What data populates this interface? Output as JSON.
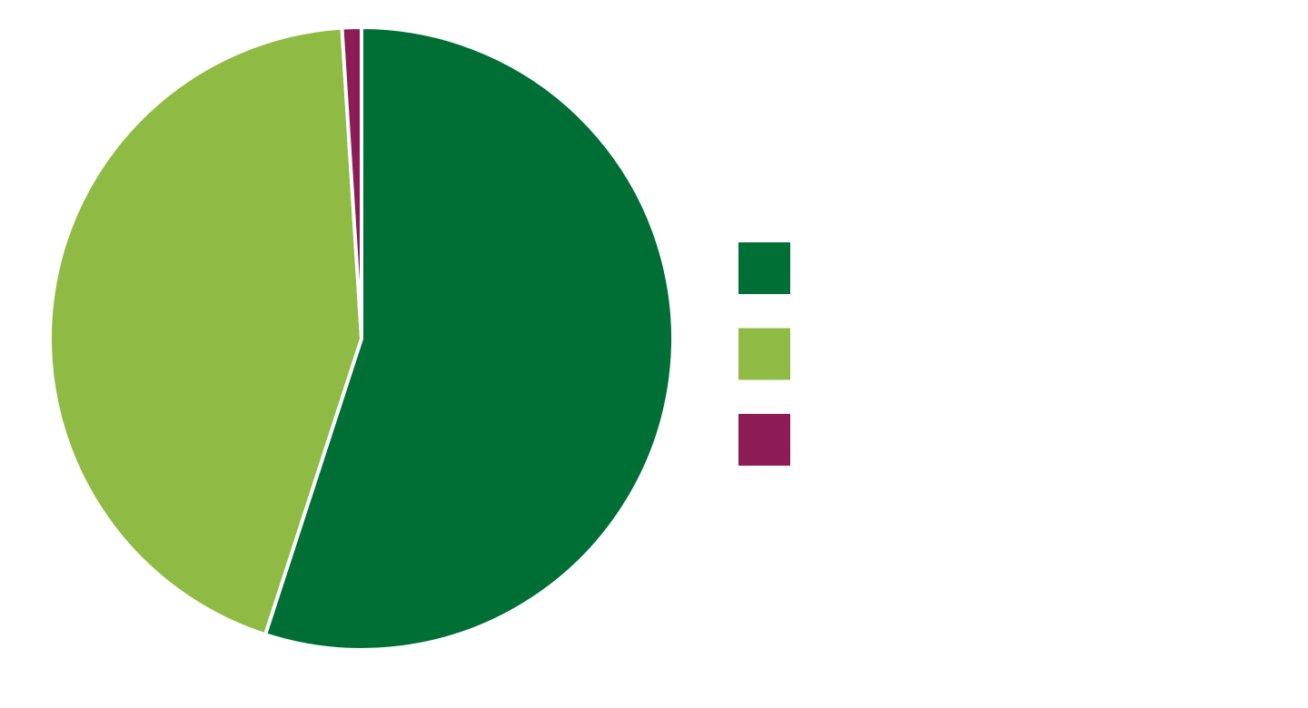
{
  "chart_data": {
    "type": "pie",
    "categories": [
      null,
      null,
      null
    ],
    "values": [
      55,
      44,
      1
    ],
    "colors": [
      "#006f35",
      "#8fbb44",
      "#8c1b56"
    ],
    "legend": "right"
  }
}
